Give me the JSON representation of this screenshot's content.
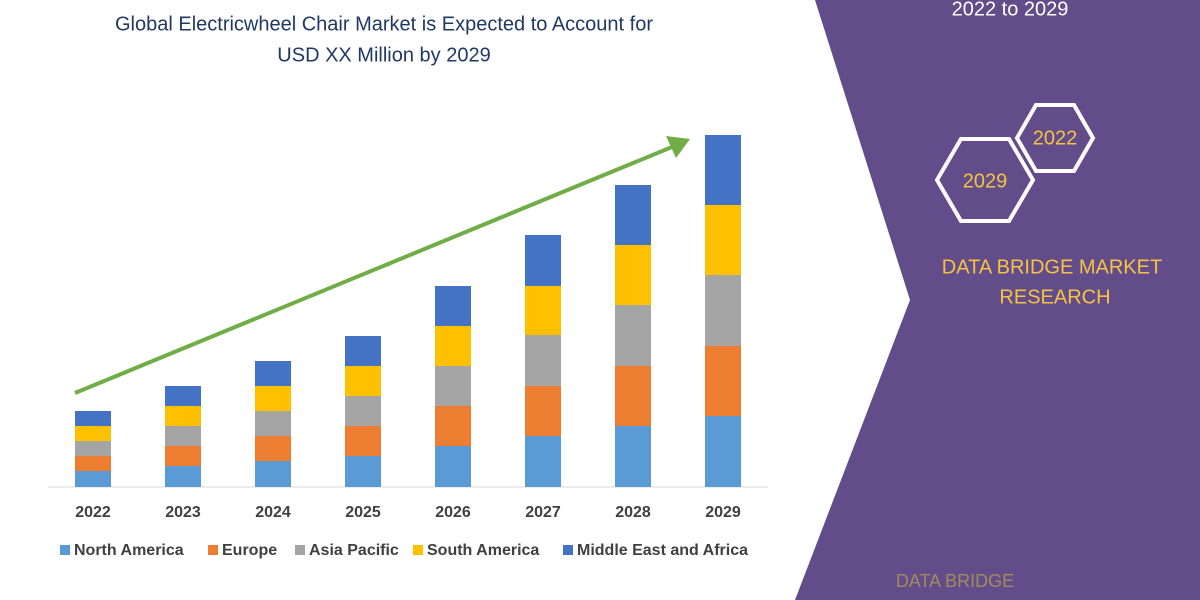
{
  "chart_data": {
    "type": "bar",
    "stacked": true,
    "title": [
      "Global Electricwheel Chair Market is Expected to Account for",
      "USD XX Million by 2029"
    ],
    "categories": [
      "2022",
      "2023",
      "2024",
      "2025",
      "2026",
      "2027",
      "2028",
      "2029"
    ],
    "series": [
      {
        "name": "North America",
        "color": "#5b9bd5",
        "values": [
          16,
          21,
          26,
          31,
          41,
          51,
          61,
          71
        ]
      },
      {
        "name": "Europe",
        "color": "#ed7d31",
        "values": [
          15,
          20,
          25,
          30,
          40,
          50,
          60,
          70
        ]
      },
      {
        "name": "Asia Pacific",
        "color": "#a5a5a5",
        "values": [
          15,
          20,
          25,
          30,
          40,
          51,
          61,
          71
        ]
      },
      {
        "name": "South America",
        "color": "#ffc000",
        "values": [
          15,
          20,
          25,
          30,
          40,
          49,
          60,
          70
        ]
      },
      {
        "name": "Middle East and Africa",
        "color": "#4472c4",
        "values": [
          15,
          20,
          25,
          30,
          40,
          51,
          60,
          70
        ]
      }
    ],
    "ylim": [
      0,
      360
    ],
    "trend_arrow_color": "#70ad47"
  },
  "panel": {
    "period": "2022 to 2029",
    "hexagons": [
      "2022",
      "2029"
    ],
    "brand": [
      "DATA BRIDGE MARKET",
      "RESEARCH"
    ],
    "logo": "DATA BRIDGE"
  }
}
